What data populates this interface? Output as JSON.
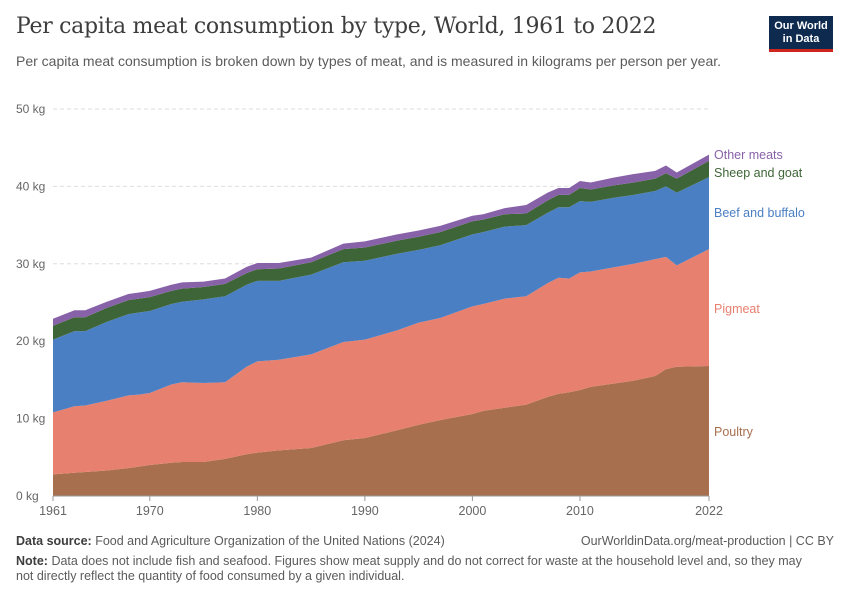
{
  "header": {
    "title": "Per capita meat consumption by type, World, 1961 to 2022",
    "subtitle": "Per capita meat consumption is broken down by types of meat, and is measured in kilograms per person per year.",
    "logo_text": "Our World in Data"
  },
  "chart_data": {
    "type": "area",
    "stacked": true,
    "x": [
      1961,
      1963,
      1964,
      1966,
      1968,
      1969,
      1970,
      1972,
      1973,
      1975,
      1977,
      1979,
      1980,
      1982,
      1985,
      1988,
      1990,
      1993,
      1995,
      1997,
      2000,
      2001,
      2003,
      2005,
      2007,
      2008,
      2009,
      2010,
      2011,
      2013,
      2015,
      2017,
      2018,
      2019,
      2022
    ],
    "series": [
      {
        "name": "Poultry",
        "color": "#a86f4f",
        "values": [
          2.8,
          3.0,
          3.1,
          3.3,
          3.6,
          3.8,
          4.0,
          4.3,
          4.4,
          4.4,
          4.8,
          5.4,
          5.6,
          5.9,
          6.2,
          7.2,
          7.5,
          8.5,
          9.2,
          9.8,
          10.6,
          11.0,
          11.4,
          11.8,
          12.8,
          13.2,
          13.4,
          13.7,
          14.1,
          14.5,
          14.9,
          15.5,
          16.4,
          16.7,
          16.8
        ]
      },
      {
        "name": "Pigmeat",
        "color": "#e8806f",
        "values": [
          8.0,
          8.6,
          8.6,
          9.0,
          9.4,
          9.3,
          9.3,
          10.1,
          10.3,
          10.2,
          9.9,
          11.3,
          11.8,
          11.7,
          12.1,
          12.7,
          12.7,
          12.9,
          13.2,
          13.2,
          13.9,
          13.8,
          14.1,
          14.0,
          14.7,
          15.0,
          14.7,
          15.2,
          14.9,
          15.0,
          15.1,
          15.1,
          14.5,
          13.1,
          15.1
        ]
      },
      {
        "name": "Beef and buffalo",
        "color": "#4a7fc4",
        "values": [
          9.4,
          9.7,
          9.6,
          10.2,
          10.5,
          10.6,
          10.6,
          10.4,
          10.4,
          10.8,
          11.1,
          10.6,
          10.4,
          10.2,
          10.3,
          10.3,
          10.2,
          9.9,
          9.4,
          9.4,
          9.3,
          9.3,
          9.3,
          9.2,
          9.1,
          9.1,
          9.2,
          9.2,
          9.0,
          9.0,
          8.9,
          8.8,
          9.1,
          9.4,
          9.3
        ]
      },
      {
        "name": "Sheep and goat",
        "color": "#3e6537",
        "values": [
          1.8,
          1.8,
          1.8,
          1.8,
          1.8,
          1.8,
          1.8,
          1.7,
          1.7,
          1.6,
          1.6,
          1.5,
          1.5,
          1.6,
          1.6,
          1.7,
          1.7,
          1.7,
          1.7,
          1.7,
          1.7,
          1.6,
          1.6,
          1.5,
          1.6,
          1.6,
          1.6,
          1.7,
          1.6,
          1.6,
          1.6,
          1.6,
          1.7,
          1.8,
          2.1
        ]
      },
      {
        "name": "Other meats",
        "color": "#8862a8",
        "values": [
          0.9,
          0.9,
          0.9,
          0.8,
          0.8,
          0.8,
          0.8,
          0.8,
          0.8,
          0.7,
          0.7,
          0.8,
          0.8,
          0.7,
          0.6,
          0.7,
          0.8,
          0.8,
          0.8,
          0.8,
          0.7,
          0.7,
          0.8,
          1.1,
          1.0,
          0.9,
          0.9,
          0.9,
          0.9,
          1.0,
          1.1,
          1.0,
          1.0,
          0.8,
          0.8
        ]
      }
    ],
    "ylim": [
      0,
      50
    ],
    "xlim": [
      1961,
      2022
    ],
    "yticks": [
      "0 kg",
      "10 kg",
      "20 kg",
      "30 kg",
      "40 kg",
      "50 kg"
    ],
    "ytick_values": [
      0,
      10,
      20,
      30,
      40,
      50
    ],
    "xticks": [
      "1961",
      "1970",
      "1980",
      "1990",
      "2000",
      "2010",
      "2022"
    ],
    "xtick_values": [
      1961,
      1970,
      1980,
      1990,
      2000,
      2010,
      2022
    ],
    "grid": "horizontal dashed",
    "legend": "right, labels at series ends"
  },
  "footer": {
    "source_label": "Data source:",
    "source": "Food and Agriculture Organization of the United Nations (2024)",
    "url": "OurWorldinData.org/meat-production | CC BY",
    "note_label": "Note:",
    "note": "Data does not include fish and seafood. Figures show meat supply and do not correct for waste at the household level and, so they may not directly reflect the quantity of food consumed by a given individual."
  }
}
